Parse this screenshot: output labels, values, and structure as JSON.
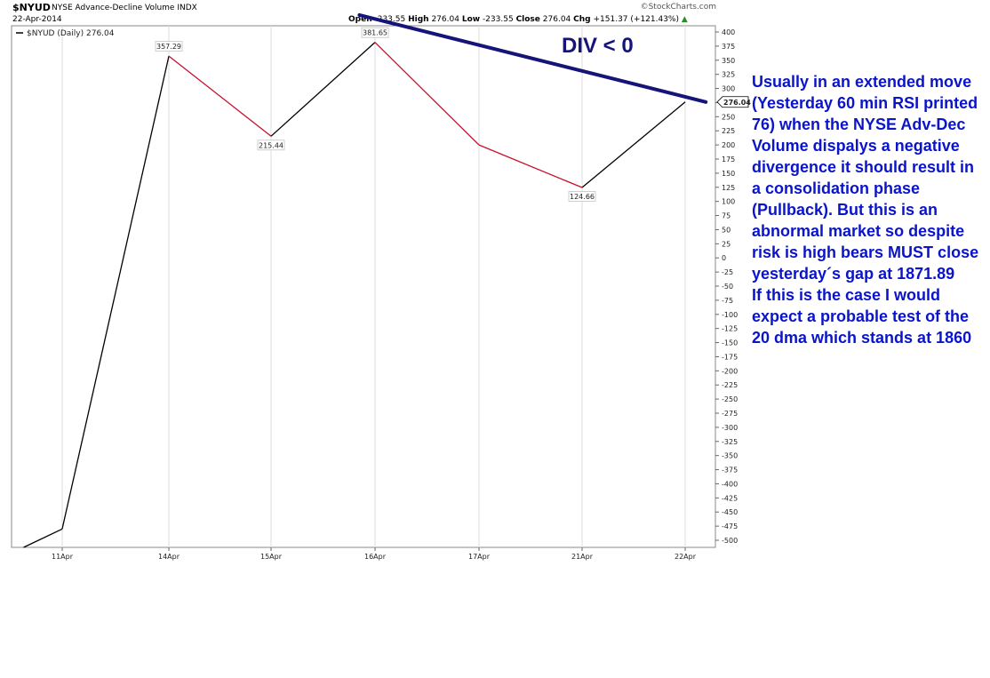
{
  "header": {
    "symbol": "$NYUD",
    "description": "NYSE Advance-Decline Volume",
    "index_tag": "INDX",
    "date": "22-Apr-2014",
    "brand": "©StockCharts.com",
    "open_label": "Open",
    "open_value": "-233.55",
    "high_label": "High",
    "high_value": "276.04",
    "low_label": "Low",
    "low_value": "-233.55",
    "close_label": "Close",
    "close_value": "276.04",
    "chg_label": "Chg",
    "chg_value": "+151.37 (+121.43%)",
    "chg_arrow": "▲"
  },
  "chart_data": {
    "type": "line",
    "legend": "$NYUD (Daily) 276.04",
    "categories": [
      "11Apr",
      "14Apr",
      "15Apr",
      "16Apr",
      "17Apr",
      "21Apr",
      "22Apr"
    ],
    "ylim": [
      -510,
      410
    ],
    "y_ticks": [
      400,
      375,
      350,
      325,
      300,
      275,
      250,
      225,
      200,
      175,
      150,
      125,
      100,
      75,
      50,
      25,
      0,
      -25,
      -50,
      -75,
      -100,
      -125,
      -150,
      -175,
      -200,
      -225,
      -250,
      -275,
      -300,
      -325,
      -350,
      -375,
      -400,
      -425,
      -450,
      -475,
      -500
    ],
    "series": [
      {
        "name": "$NYUD (Daily)",
        "values": [
          -480,
          357.29,
          215.44,
          381.65,
          200,
          124.66,
          276.04
        ],
        "segment_colors": [
          "#000000",
          "#c8102e",
          "#000000",
          "#c8102e",
          "#c8102e",
          "#000000"
        ]
      }
    ],
    "start_point": [
      -0.5,
      -525
    ],
    "point_labels": [
      {
        "label": "357.29",
        "index": 1,
        "value": 357.29,
        "position": "above"
      },
      {
        "label": "215.44",
        "index": 2,
        "value": 215.44,
        "position": "below"
      },
      {
        "label": "381.65",
        "index": 3,
        "value": 381.65,
        "position": "above"
      },
      {
        "label": "124.66",
        "index": 5,
        "value": 124.66,
        "position": "below"
      }
    ],
    "last_value_label": "276.04",
    "trendline": {
      "from": [
        2.85,
        430
      ],
      "to": [
        6.2,
        276
      ],
      "color": "#14147a"
    },
    "annotation_text": "DIV < 0",
    "grid": "vertical",
    "colors": {
      "up": "#000000",
      "down": "#c8102e",
      "trend": "#14147a",
      "annotation": "#0a14c8"
    }
  },
  "annotation": {
    "text": "Usually in an extended move (Yesterday 60 min RSI printed 76) when the NYSE Adv-Dec Volume dispalys a negative divergence it should result in a consolidation phase (Pullback). But this is an abnormal market so despite risk is high bears MUST close yesterday´s gap at 1871.89\nIf this is the case I would expect a probable test of the 20 dma which stands at 1860"
  }
}
